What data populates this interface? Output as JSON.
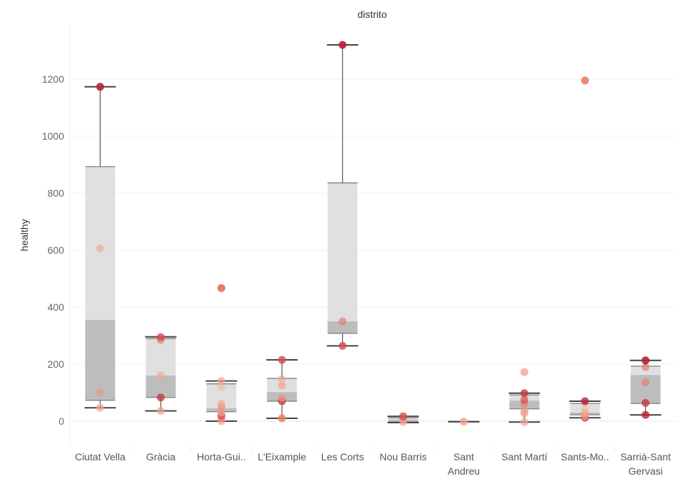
{
  "chart_data": {
    "type": "boxplot",
    "title": "distrito",
    "ylabel": "healthy",
    "ylim": [
      -90,
      1400
    ],
    "yticks": [
      0,
      200,
      400,
      600,
      800,
      1000,
      1200
    ],
    "grid": true,
    "categories": [
      {
        "label": [
          "Ciutat Vella"
        ],
        "whisker_low": 47,
        "q1": 73,
        "median": 355,
        "q3": 893,
        "whisker_high": 1173,
        "points": [
          {
            "v": 47,
            "c": "#f2a38c",
            "o": 0.7
          },
          {
            "v": 100,
            "c": "#e89a8c",
            "o": 0.7
          },
          {
            "v": 606,
            "c": "#efa597",
            "o": 0.6
          },
          {
            "v": 1173,
            "c": "#b4233a",
            "o": 0.9
          }
        ]
      },
      {
        "label": [
          "Gràcia"
        ],
        "whisker_low": 36,
        "q1": 83,
        "median": 160,
        "q3": 290,
        "whisker_high": 296,
        "points": [
          {
            "v": 36,
            "c": "#f3a089",
            "o": 0.7
          },
          {
            "v": 83,
            "c": "#c43a44",
            "o": 0.8
          },
          {
            "v": 161,
            "c": "#f2a38c",
            "o": 0.6
          },
          {
            "v": 285,
            "c": "#e57f75",
            "o": 0.7
          },
          {
            "v": 295,
            "c": "#d84a50",
            "o": 0.8
          }
        ]
      },
      {
        "label": [
          "Horta-Gui.."
        ],
        "whisker_low": 0,
        "q1": 33,
        "median": 45,
        "q3": 131,
        "whisker_high": 141,
        "points": [
          {
            "v": 0,
            "c": "#f2a38c",
            "o": 0.7
          },
          {
            "v": 10,
            "c": "#e57f75",
            "o": 0.7
          },
          {
            "v": 20,
            "c": "#d84a50",
            "o": 0.8
          },
          {
            "v": 30,
            "c": "#f2a38c",
            "o": 0.7
          },
          {
            "v": 50,
            "c": "#eb8f80",
            "o": 0.7
          },
          {
            "v": 60,
            "c": "#f2a38c",
            "o": 0.7
          },
          {
            "v": 120,
            "c": "#f5b6a6",
            "o": 0.6
          },
          {
            "v": 141,
            "c": "#f2a38c",
            "o": 0.7
          },
          {
            "v": 467,
            "c": "#ec6a55",
            "o": 0.9
          }
        ]
      },
      {
        "label": [
          "L'Eixample"
        ],
        "whisker_low": 10,
        "q1": 70,
        "median": 102,
        "q3": 150,
        "whisker_high": 215,
        "points": [
          {
            "v": 10,
            "c": "#ec7a64",
            "o": 0.8
          },
          {
            "v": 70,
            "c": "#c43a44",
            "o": 0.8
          },
          {
            "v": 82,
            "c": "#e89a8c",
            "o": 0.7
          },
          {
            "v": 125,
            "c": "#f2a38c",
            "o": 0.7
          },
          {
            "v": 148,
            "c": "#f2a38c",
            "o": 0.6
          },
          {
            "v": 215,
            "c": "#d84a50",
            "o": 0.8
          }
        ]
      },
      {
        "label": [
          "Les Corts"
        ],
        "whisker_low": 264,
        "q1": 308,
        "median": 350,
        "q3": 836,
        "whisker_high": 1320,
        "points": [
          {
            "v": 264,
            "c": "#d84a50",
            "o": 0.8
          },
          {
            "v": 350,
            "c": "#e57f75",
            "o": 0.7
          },
          {
            "v": 1320,
            "c": "#b4233a",
            "o": 0.9
          }
        ]
      },
      {
        "label": [
          "Nou Barris"
        ],
        "whisker_low": -5,
        "q1": -3,
        "median": 5,
        "q3": 12,
        "whisker_high": 17,
        "points": [
          {
            "v": -3,
            "c": "#f2a38c",
            "o": 0.7
          },
          {
            "v": 5,
            "c": "#e89a8c",
            "o": 0.7
          },
          {
            "v": 17,
            "c": "#d84a50",
            "o": 0.8
          }
        ]
      },
      {
        "label": [
          "Sant",
          "Andreu"
        ],
        "whisker_low": -2,
        "q1": -2,
        "median": -2,
        "q3": -2,
        "whisker_high": -2,
        "points": [
          {
            "v": -2,
            "c": "#f2a38c",
            "o": 0.8
          }
        ]
      },
      {
        "label": [
          "Sant Martí"
        ],
        "whisker_low": -3,
        "q1": 43,
        "median": 72,
        "q3": 92,
        "whisker_high": 98,
        "points": [
          {
            "v": -3,
            "c": "#f2a38c",
            "o": 0.7
          },
          {
            "v": 27,
            "c": "#f2a38c",
            "o": 0.7
          },
          {
            "v": 34,
            "c": "#f0a08a",
            "o": 0.7
          },
          {
            "v": 60,
            "c": "#e57f75",
            "o": 0.7
          },
          {
            "v": 75,
            "c": "#d84a50",
            "o": 0.7
          },
          {
            "v": 98,
            "c": "#c43a44",
            "o": 0.8
          },
          {
            "v": 172,
            "c": "#f5a595",
            "o": 0.8
          }
        ]
      },
      {
        "label": [
          "Sants-Mo.."
        ],
        "whisker_low": 12,
        "q1": 22,
        "median": 30,
        "q3": 62,
        "whisker_high": 70,
        "points": [
          {
            "v": 12,
            "c": "#d84a50",
            "o": 0.8
          },
          {
            "v": 20,
            "c": "#f2a38c",
            "o": 0.7
          },
          {
            "v": 30,
            "c": "#f2a38c",
            "o": 0.7
          },
          {
            "v": 45,
            "c": "#f5b6a6",
            "o": 0.6
          },
          {
            "v": 70,
            "c": "#b4233a",
            "o": 0.8
          },
          {
            "v": 1195,
            "c": "#ec7a64",
            "o": 0.9
          }
        ]
      },
      {
        "label": [
          "Sarrià-Sant",
          "Gervasi"
        ],
        "whisker_low": 22,
        "q1": 62,
        "median": 162,
        "q3": 193,
        "whisker_high": 213,
        "points": [
          {
            "v": 22,
            "c": "#b4233a",
            "o": 0.8
          },
          {
            "v": 64,
            "c": "#c43a44",
            "o": 0.8
          },
          {
            "v": 136,
            "c": "#e57f75",
            "o": 0.7
          },
          {
            "v": 190,
            "c": "#e57f75",
            "o": 0.7
          },
          {
            "v": 213,
            "c": "#b4233a",
            "o": 0.9
          }
        ]
      }
    ],
    "colors": {
      "upper_box": "#e0e0e0",
      "lower_box": "#bdbdbd",
      "whisker": "#555555",
      "cap": "#444444"
    }
  }
}
